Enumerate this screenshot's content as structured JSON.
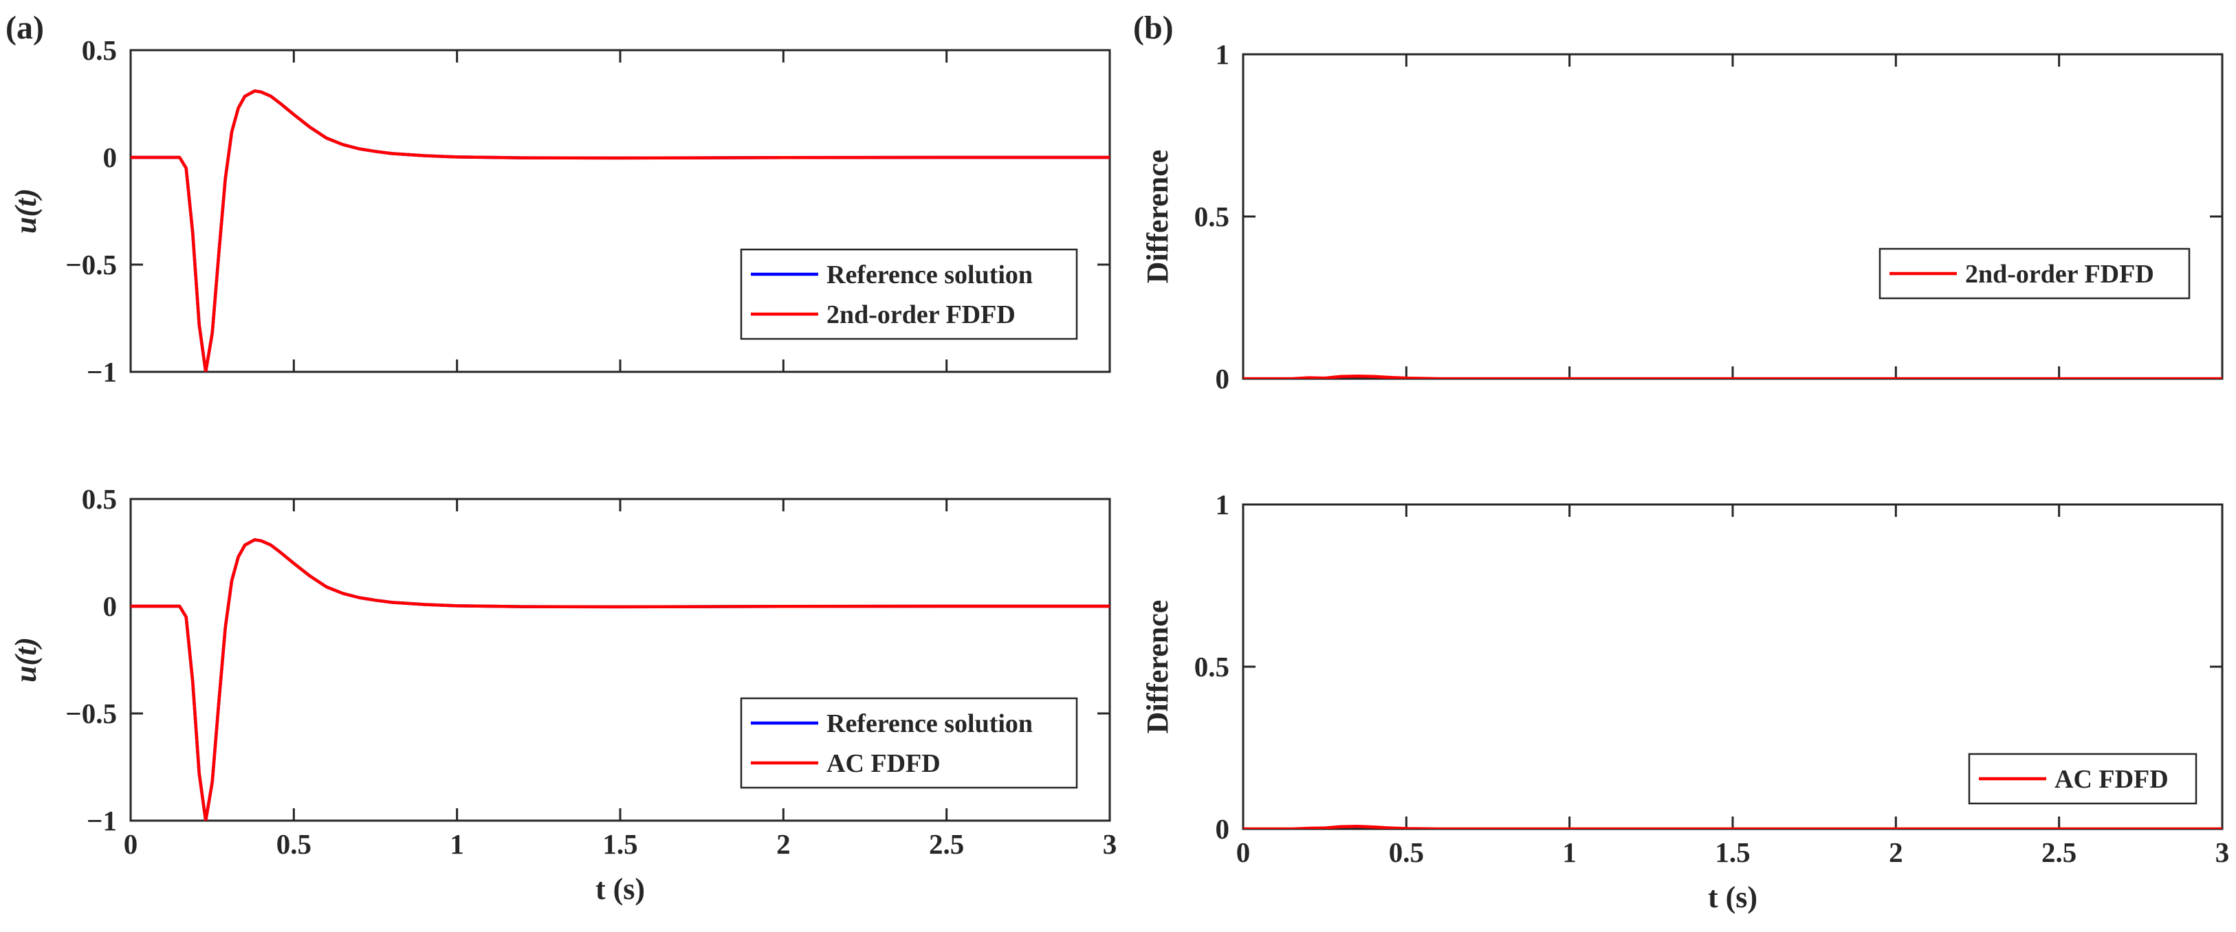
{
  "panel_labels": [
    "(a)",
    "(b)"
  ],
  "chart_data": [
    {
      "id": "a-top",
      "type": "line",
      "title": "",
      "xlabel": "",
      "ylabel": "u(t)",
      "xlim": [
        0,
        3
      ],
      "ylim": [
        -1,
        0.5
      ],
      "xticks": [
        0,
        0.5,
        1,
        1.5,
        2,
        2.5,
        3
      ],
      "yticks": [
        -1,
        -0.5,
        0,
        0.5
      ],
      "xtick_labels": [],
      "ytick_labels": [
        "−1",
        "−0.5",
        "0",
        "0.5"
      ],
      "grid": false,
      "legend_position": "lower-right",
      "series": [
        {
          "name": "Reference solution",
          "color": "#0000ff",
          "x": [
            0,
            0.1,
            0.15,
            0.17,
            0.19,
            0.21,
            0.23,
            0.25,
            0.27,
            0.29,
            0.31,
            0.33,
            0.35,
            0.38,
            0.4,
            0.43,
            0.46,
            0.5,
            0.55,
            0.6,
            0.65,
            0.7,
            0.75,
            0.8,
            0.9,
            1.0,
            1.2,
            1.5,
            2.0,
            2.5,
            3.0
          ],
          "y": [
            0,
            0,
            0,
            -0.05,
            -0.35,
            -0.78,
            -1.0,
            -0.82,
            -0.45,
            -0.1,
            0.12,
            0.23,
            0.285,
            0.31,
            0.305,
            0.285,
            0.25,
            0.2,
            0.14,
            0.09,
            0.06,
            0.04,
            0.028,
            0.018,
            0.008,
            0.002,
            -0.002,
            -0.003,
            -0.001,
            0.0,
            0.0
          ]
        },
        {
          "name": "2nd-order FDFD",
          "color": "#ff0000",
          "x": [
            0,
            0.1,
            0.15,
            0.17,
            0.19,
            0.21,
            0.23,
            0.25,
            0.27,
            0.29,
            0.31,
            0.33,
            0.35,
            0.38,
            0.4,
            0.43,
            0.46,
            0.5,
            0.55,
            0.6,
            0.65,
            0.7,
            0.75,
            0.8,
            0.9,
            1.0,
            1.2,
            1.5,
            2.0,
            2.5,
            3.0
          ],
          "y": [
            0,
            0,
            0,
            -0.05,
            -0.35,
            -0.78,
            -1.0,
            -0.82,
            -0.45,
            -0.1,
            0.12,
            0.23,
            0.285,
            0.31,
            0.305,
            0.285,
            0.25,
            0.2,
            0.14,
            0.09,
            0.06,
            0.04,
            0.028,
            0.018,
            0.008,
            0.002,
            -0.002,
            -0.003,
            -0.001,
            0.0,
            0.0
          ]
        }
      ]
    },
    {
      "id": "a-bottom",
      "type": "line",
      "title": "",
      "xlabel": "t (s)",
      "ylabel": "u(t)",
      "xlim": [
        0,
        3
      ],
      "ylim": [
        -1,
        0.5
      ],
      "xticks": [
        0,
        0.5,
        1,
        1.5,
        2,
        2.5,
        3
      ],
      "yticks": [
        -1,
        -0.5,
        0,
        0.5
      ],
      "xtick_labels": [
        "0",
        "0.5",
        "1",
        "1.5",
        "2",
        "2.5",
        "3"
      ],
      "ytick_labels": [
        "−1",
        "−0.5",
        "0",
        "0.5"
      ],
      "grid": false,
      "legend_position": "lower-right",
      "series": [
        {
          "name": "Reference solution",
          "color": "#0000ff",
          "x": [
            0,
            0.1,
            0.15,
            0.17,
            0.19,
            0.21,
            0.23,
            0.25,
            0.27,
            0.29,
            0.31,
            0.33,
            0.35,
            0.38,
            0.4,
            0.43,
            0.46,
            0.5,
            0.55,
            0.6,
            0.65,
            0.7,
            0.75,
            0.8,
            0.9,
            1.0,
            1.2,
            1.5,
            2.0,
            2.5,
            3.0
          ],
          "y": [
            0,
            0,
            0,
            -0.05,
            -0.35,
            -0.78,
            -1.0,
            -0.82,
            -0.45,
            -0.1,
            0.12,
            0.23,
            0.285,
            0.31,
            0.305,
            0.285,
            0.25,
            0.2,
            0.14,
            0.09,
            0.06,
            0.04,
            0.028,
            0.018,
            0.008,
            0.002,
            -0.002,
            -0.003,
            -0.001,
            0.0,
            0.0
          ]
        },
        {
          "name": "AC FDFD",
          "color": "#ff0000",
          "x": [
            0,
            0.1,
            0.15,
            0.17,
            0.19,
            0.21,
            0.23,
            0.25,
            0.27,
            0.29,
            0.31,
            0.33,
            0.35,
            0.38,
            0.4,
            0.43,
            0.46,
            0.5,
            0.55,
            0.6,
            0.65,
            0.7,
            0.75,
            0.8,
            0.9,
            1.0,
            1.2,
            1.5,
            2.0,
            2.5,
            3.0
          ],
          "y": [
            0,
            0,
            0,
            -0.05,
            -0.35,
            -0.78,
            -1.0,
            -0.82,
            -0.45,
            -0.1,
            0.12,
            0.23,
            0.285,
            0.31,
            0.305,
            0.285,
            0.25,
            0.2,
            0.14,
            0.09,
            0.06,
            0.04,
            0.028,
            0.018,
            0.008,
            0.002,
            -0.002,
            -0.003,
            -0.001,
            0.0,
            0.0
          ]
        }
      ]
    },
    {
      "id": "b-top",
      "type": "line",
      "title": "",
      "xlabel": "",
      "ylabel": "Difference",
      "xlim": [
        0,
        3
      ],
      "ylim": [
        0,
        1
      ],
      "xticks": [
        0,
        0.5,
        1,
        1.5,
        2,
        2.5,
        3
      ],
      "yticks": [
        0,
        0.5,
        1
      ],
      "xtick_labels": [],
      "ytick_labels": [
        "0",
        "0.5",
        "1"
      ],
      "grid": false,
      "legend_position": "right",
      "series": [
        {
          "name": "2nd-order FDFD",
          "color": "#ff0000",
          "x": [
            0,
            0.15,
            0.2,
            0.25,
            0.3,
            0.35,
            0.4,
            0.45,
            0.5,
            0.6,
            0.8,
            1.0,
            1.5,
            2.0,
            2.5,
            3.0
          ],
          "y": [
            0,
            0,
            0.003,
            0.002,
            0.007,
            0.008,
            0.007,
            0.004,
            0.002,
            0.0,
            0.0,
            0.0,
            0.0,
            0.0,
            0.0,
            0.0
          ]
        }
      ]
    },
    {
      "id": "b-bottom",
      "type": "line",
      "title": "",
      "xlabel": "t (s)",
      "ylabel": "Difference",
      "xlim": [
        0,
        3
      ],
      "ylim": [
        0,
        1
      ],
      "xticks": [
        0,
        0.5,
        1,
        1.5,
        2,
        2.5,
        3
      ],
      "yticks": [
        0,
        0.5,
        1
      ],
      "xtick_labels": [
        "0",
        "0.5",
        "1",
        "1.5",
        "2",
        "2.5",
        "3"
      ],
      "ytick_labels": [
        "0",
        "0.5",
        "1"
      ],
      "grid": false,
      "legend_position": "lower-right",
      "series": [
        {
          "name": "AC FDFD",
          "color": "#ff0000",
          "x": [
            0,
            0.15,
            0.2,
            0.25,
            0.3,
            0.35,
            0.4,
            0.45,
            0.5,
            0.6,
            0.8,
            1.0,
            1.5,
            2.0,
            2.5,
            3.0
          ],
          "y": [
            0,
            0,
            0.002,
            0.003,
            0.007,
            0.008,
            0.006,
            0.003,
            0.001,
            0.0,
            0.0,
            0.0,
            0.0,
            0.0,
            0.0,
            0.0
          ]
        }
      ]
    }
  ]
}
